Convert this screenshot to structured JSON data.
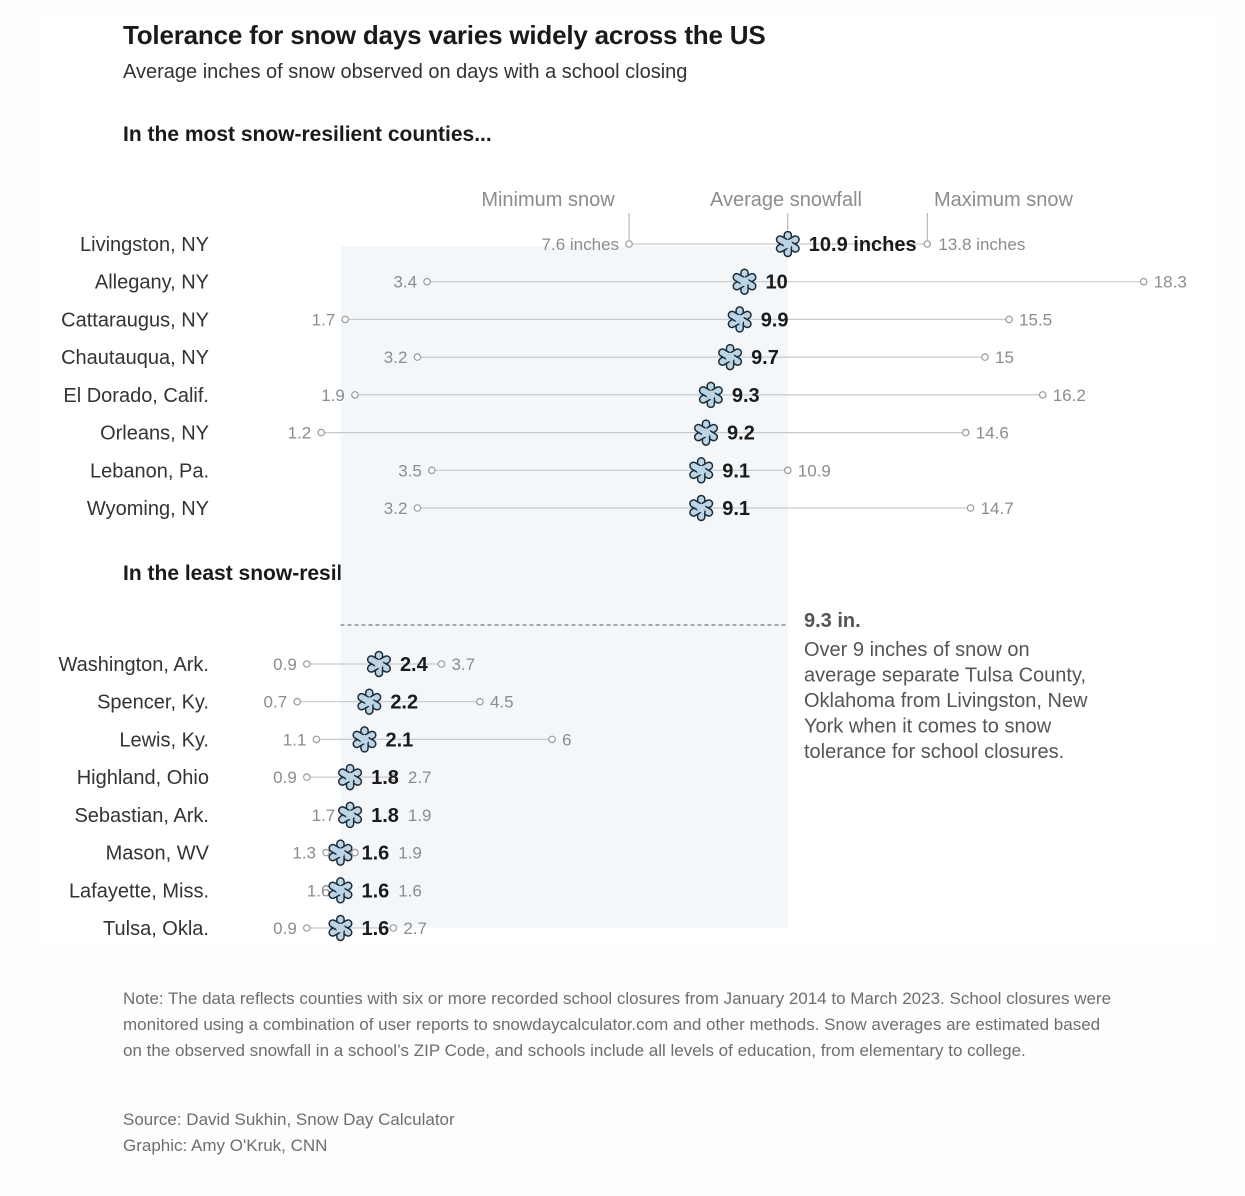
{
  "header": {
    "title": "Tolerance for snow days varies widely across the US",
    "subtitle": "Average inches of snow observed on days with a school closing"
  },
  "sections": {
    "top": "In the most snow-resilient counties...",
    "bottom": "In the least snow-resilient counties..."
  },
  "legend": {
    "min": "Minimum snow",
    "avg": "Average snowfall",
    "max": "Maximum snow"
  },
  "annotation": {
    "value": "9.3 in.",
    "text": "Over 9 inches of snow on average separate Tulsa County, Oklahoma from Livingston, New York when it comes to snow tolerance for school closures.",
    "lines": [
      "Over 9 inches of snow on",
      "average separate Tulsa County,",
      "Oklahoma from Livingston, New",
      "York when it comes to snow",
      "tolerance for school closures."
    ]
  },
  "footer": {
    "note": "Note: The data reflects counties with six or more recorded school closures from January 2014 to March 2023. School closures were monitored using a combination of user reports to snowdaycalculator.com and other methods. Snow averages are estimated based on the observed snowfall in a school’s ZIP Code, and schools include all levels of education, from elementary to college.",
    "source": "Source: David Sukhin, Snow Day Calculator",
    "graphic": "Graphic: Amy O'Kruk, CNN"
  },
  "colors": {
    "snowflake_fill": "#bcd5e6",
    "snowflake_stroke": "#1d2b36",
    "band": "#f3f7fa",
    "range_line": "#c9c9c9",
    "label_gray": "#8c8c8c",
    "dash": "#777777"
  },
  "chart_data": {
    "type": "dot-range",
    "unit": "inches",
    "band_range": [
      1.6,
      10.9
    ],
    "band_difference_label": "9.3 in.",
    "groups": [
      {
        "label": "In the most snow-resilient counties...",
        "rows": [
          {
            "county": "Livingston, NY",
            "min": 7.6,
            "avg": 10.9,
            "max": 13.8,
            "min_label": "7.6 inches",
            "avg_label": "10.9 inches",
            "max_label": "13.8 inches"
          },
          {
            "county": "Allegany, NY",
            "min": 3.4,
            "avg": 10,
            "max": 18.3,
            "min_label": "3.4",
            "avg_label": "10",
            "max_label": "18.3"
          },
          {
            "county": "Cattaraugus, NY",
            "min": 1.7,
            "avg": 9.9,
            "max": 15.5,
            "min_label": "1.7",
            "avg_label": "9.9",
            "max_label": "15.5"
          },
          {
            "county": "Chautauqua, NY",
            "min": 3.2,
            "avg": 9.7,
            "max": 15,
            "min_label": "3.2",
            "avg_label": "9.7",
            "max_label": "15"
          },
          {
            "county": "El Dorado, Calif.",
            "min": 1.9,
            "avg": 9.3,
            "max": 16.2,
            "min_label": "1.9",
            "avg_label": "9.3",
            "max_label": "16.2"
          },
          {
            "county": "Orleans, NY",
            "min": 1.2,
            "avg": 9.2,
            "max": 14.6,
            "min_label": "1.2",
            "avg_label": "9.2",
            "max_label": "14.6"
          },
          {
            "county": "Lebanon, Pa.",
            "min": 3.5,
            "avg": 9.1,
            "max": 10.9,
            "min_label": "3.5",
            "avg_label": "9.1",
            "max_label": "10.9"
          },
          {
            "county": "Wyoming, NY",
            "min": 3.2,
            "avg": 9.1,
            "max": 14.7,
            "min_label": "3.2",
            "avg_label": "9.1",
            "max_label": "14.7"
          }
        ]
      },
      {
        "label": "In the least snow-resilient counties...",
        "rows": [
          {
            "county": "Washington, Ark.",
            "min": 0.9,
            "avg": 2.4,
            "max": 3.7,
            "min_label": "0.9",
            "avg_label": "2.4",
            "max_label": "3.7"
          },
          {
            "county": "Spencer, Ky.",
            "min": 0.7,
            "avg": 2.2,
            "max": 4.5,
            "min_label": "0.7",
            "avg_label": "2.2",
            "max_label": "4.5"
          },
          {
            "county": "Lewis, Ky.",
            "min": 1.1,
            "avg": 2.1,
            "max": 6,
            "min_label": "1.1",
            "avg_label": "2.1",
            "max_label": "6"
          },
          {
            "county": "Highland, Ohio",
            "min": 0.9,
            "avg": 1.8,
            "max": 2.7,
            "min_label": "0.9",
            "avg_label": "1.8",
            "max_label": "2.7"
          },
          {
            "county": "Sebastian, Ark.",
            "min": 1.7,
            "avg": 1.8,
            "max": 1.9,
            "min_label": "1.7",
            "avg_label": "1.8",
            "max_label": "1.9"
          },
          {
            "county": "Mason, WV",
            "min": 1.3,
            "avg": 1.6,
            "max": 1.9,
            "min_label": "1.3",
            "avg_label": "1.6",
            "max_label": "1.9"
          },
          {
            "county": "Lafayette, Miss.",
            "min": 1.6,
            "avg": 1.6,
            "max": 1.6,
            "min_label": "1.6",
            "avg_label": "1.6",
            "max_label": "1.6"
          },
          {
            "county": "Tulsa, Okla.",
            "min": 0.9,
            "avg": 1.6,
            "max": 2.7,
            "min_label": "0.9",
            "avg_label": "1.6",
            "max_label": "2.7"
          }
        ]
      }
    ]
  }
}
